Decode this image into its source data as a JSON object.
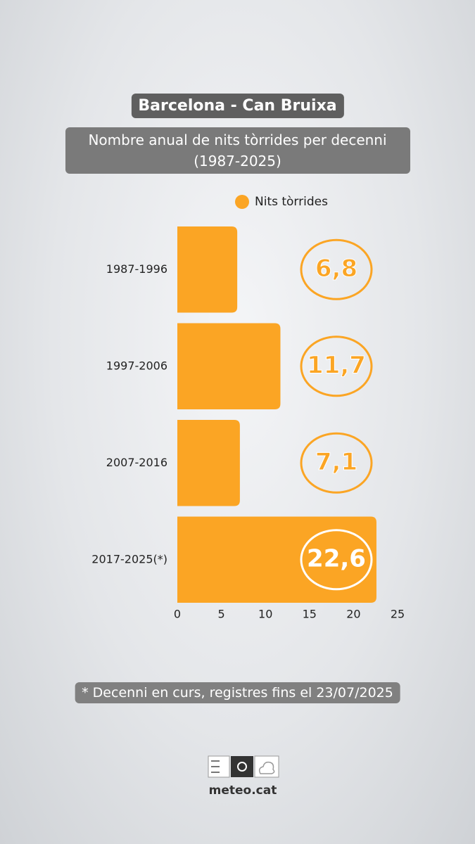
{
  "title": "Barcelona - Can Bruixa",
  "chart_data": {
    "type": "bar",
    "orientation": "horizontal",
    "subtitle": "Nombre anual de nits tòrrides per decenni (1987-2025)",
    "categories": [
      "1987-1996",
      "1997-2006",
      "2007-2016",
      "2017-2025(*)"
    ],
    "series": [
      {
        "name": "Nits tòrrides",
        "color": "#fba524",
        "values": [
          6.8,
          11.7,
          7.1,
          22.6
        ],
        "value_labels": [
          "6,8",
          "11,7",
          "7,1",
          "22,6"
        ]
      }
    ],
    "xlim": [
      0,
      25
    ],
    "xticks": [
      0,
      5,
      10,
      15,
      20,
      25
    ],
    "grid": false,
    "legend": "top"
  },
  "note": "* Decenni en curs, registres fins el 23/07/2025",
  "logo": "meteo.cat"
}
